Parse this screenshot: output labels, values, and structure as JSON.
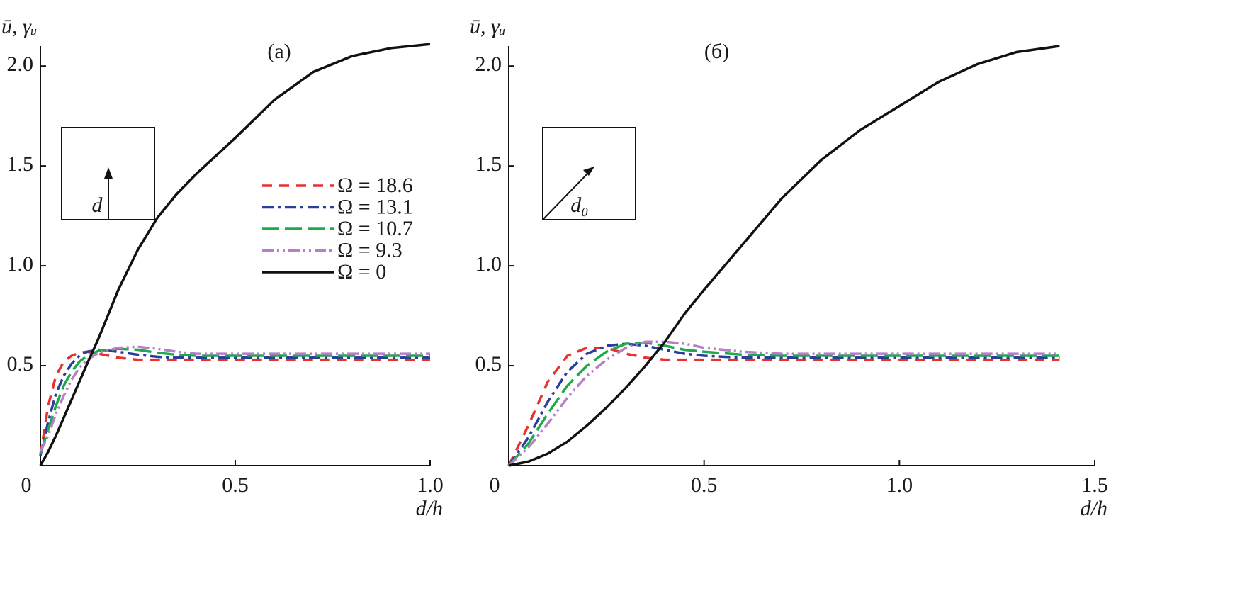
{
  "chart_data": [
    {
      "type": "line",
      "panel_label": "(а)",
      "ylabel": "ū, γᵤ",
      "xlabel": "d/h",
      "inset_label": "d",
      "inset_direction": "vertical",
      "legend": true,
      "xlim": [
        0,
        1
      ],
      "xticks": [
        0,
        0.5,
        {
          "value": 1,
          "label": "1.0"
        }
      ],
      "ylim": [
        0,
        2.1
      ],
      "yticks": [
        0.5,
        {
          "value": 1,
          "label": "1.0"
        },
        1.5,
        {
          "value": 2,
          "label": "2.0"
        }
      ],
      "x": [
        0,
        0.02,
        0.04,
        0.06,
        0.08,
        0.1,
        0.12,
        0.15,
        0.2,
        0.25,
        0.3,
        0.35,
        0.4,
        0.5,
        0.6,
        0.7,
        0.8,
        0.9,
        1.0
      ],
      "series": [
        {
          "name": "Ω = 18.6",
          "color": "#e8312f",
          "dash": "14,10",
          "values": [
            0.05,
            0.3,
            0.45,
            0.52,
            0.55,
            0.565,
            0.57,
            0.56,
            0.54,
            0.53,
            0.53,
            0.53,
            0.53,
            0.53,
            0.53,
            0.53,
            0.53,
            0.53,
            0.53
          ]
        },
        {
          "name": "Ω = 13.1",
          "color": "#2a3f9a",
          "dash": "16,6,4,6",
          "values": [
            0.05,
            0.22,
            0.36,
            0.45,
            0.51,
            0.55,
            0.57,
            0.58,
            0.57,
            0.555,
            0.545,
            0.54,
            0.54,
            0.54,
            0.54,
            0.54,
            0.54,
            0.54,
            0.54
          ]
        },
        {
          "name": "Ω = 10.7",
          "color": "#1faa4a",
          "dash": "24,8",
          "values": [
            0.06,
            0.18,
            0.3,
            0.4,
            0.47,
            0.52,
            0.55,
            0.575,
            0.585,
            0.58,
            0.565,
            0.555,
            0.55,
            0.55,
            0.55,
            0.55,
            0.55,
            0.55,
            0.55
          ]
        },
        {
          "name": "Ω = 9.3",
          "color": "#b77fc7",
          "dash": "16,5,3,5,3,5",
          "values": [
            0.07,
            0.15,
            0.26,
            0.35,
            0.43,
            0.49,
            0.53,
            0.565,
            0.59,
            0.595,
            0.585,
            0.57,
            0.56,
            0.56,
            0.56,
            0.56,
            0.56,
            0.56,
            0.56
          ]
        },
        {
          "name": "Ω = 0",
          "color": "#111111",
          "dash": "none",
          "values": [
            0,
            0.07,
            0.15,
            0.24,
            0.33,
            0.42,
            0.51,
            0.64,
            0.88,
            1.08,
            1.24,
            1.36,
            1.46,
            1.64,
            1.83,
            1.97,
            2.05,
            2.09,
            2.11
          ]
        }
      ]
    },
    {
      "type": "line",
      "panel_label": "(б)",
      "ylabel": "ū, γᵤ",
      "xlabel": "d/h",
      "inset_label": "d₀",
      "inset_direction": "diagonal",
      "legend": false,
      "xlim": [
        0,
        1.5
      ],
      "xticks": [
        0,
        0.5,
        {
          "value": 1,
          "label": "1.0"
        },
        1.5
      ],
      "ylim": [
        0,
        2.1
      ],
      "yticks": [
        0.5,
        {
          "value": 1,
          "label": "1.0"
        },
        1.5,
        {
          "value": 2,
          "label": "2.0"
        }
      ],
      "x": [
        0,
        0.05,
        0.1,
        0.15,
        0.2,
        0.25,
        0.3,
        0.35,
        0.4,
        0.45,
        0.5,
        0.6,
        0.7,
        0.8,
        0.9,
        1.0,
        1.1,
        1.2,
        1.3,
        1.41
      ],
      "series": [
        {
          "name": "Ω = 18.6",
          "color": "#e8312f",
          "dash": "14,10",
          "values": [
            0,
            0.2,
            0.42,
            0.55,
            0.59,
            0.59,
            0.56,
            0.54,
            0.53,
            0.53,
            0.53,
            0.53,
            0.53,
            0.53,
            0.53,
            0.53,
            0.53,
            0.53,
            0.53,
            0.53
          ]
        },
        {
          "name": "Ω = 13.1",
          "color": "#2a3f9a",
          "dash": "16,6,4,6",
          "values": [
            0,
            0.14,
            0.32,
            0.47,
            0.56,
            0.6,
            0.61,
            0.6,
            0.58,
            0.56,
            0.55,
            0.54,
            0.54,
            0.54,
            0.54,
            0.54,
            0.54,
            0.54,
            0.54,
            0.54
          ]
        },
        {
          "name": "Ω = 10.7",
          "color": "#1faa4a",
          "dash": "24,8",
          "values": [
            0,
            0.11,
            0.26,
            0.4,
            0.5,
            0.57,
            0.61,
            0.615,
            0.6,
            0.58,
            0.57,
            0.555,
            0.55,
            0.55,
            0.55,
            0.55,
            0.55,
            0.55,
            0.55,
            0.55
          ]
        },
        {
          "name": "Ω = 9.3",
          "color": "#b77fc7",
          "dash": "16,5,3,5,3,5",
          "values": [
            0,
            0.09,
            0.21,
            0.34,
            0.45,
            0.53,
            0.59,
            0.62,
            0.62,
            0.61,
            0.59,
            0.57,
            0.56,
            0.56,
            0.56,
            0.56,
            0.56,
            0.56,
            0.56,
            0.56
          ]
        },
        {
          "name": "Ω = 0",
          "color": "#111111",
          "dash": "none",
          "values": [
            0,
            0.02,
            0.06,
            0.12,
            0.2,
            0.29,
            0.39,
            0.5,
            0.62,
            0.76,
            0.88,
            1.11,
            1.34,
            1.53,
            1.68,
            1.8,
            1.92,
            2.01,
            2.07,
            2.1
          ]
        }
      ]
    }
  ]
}
